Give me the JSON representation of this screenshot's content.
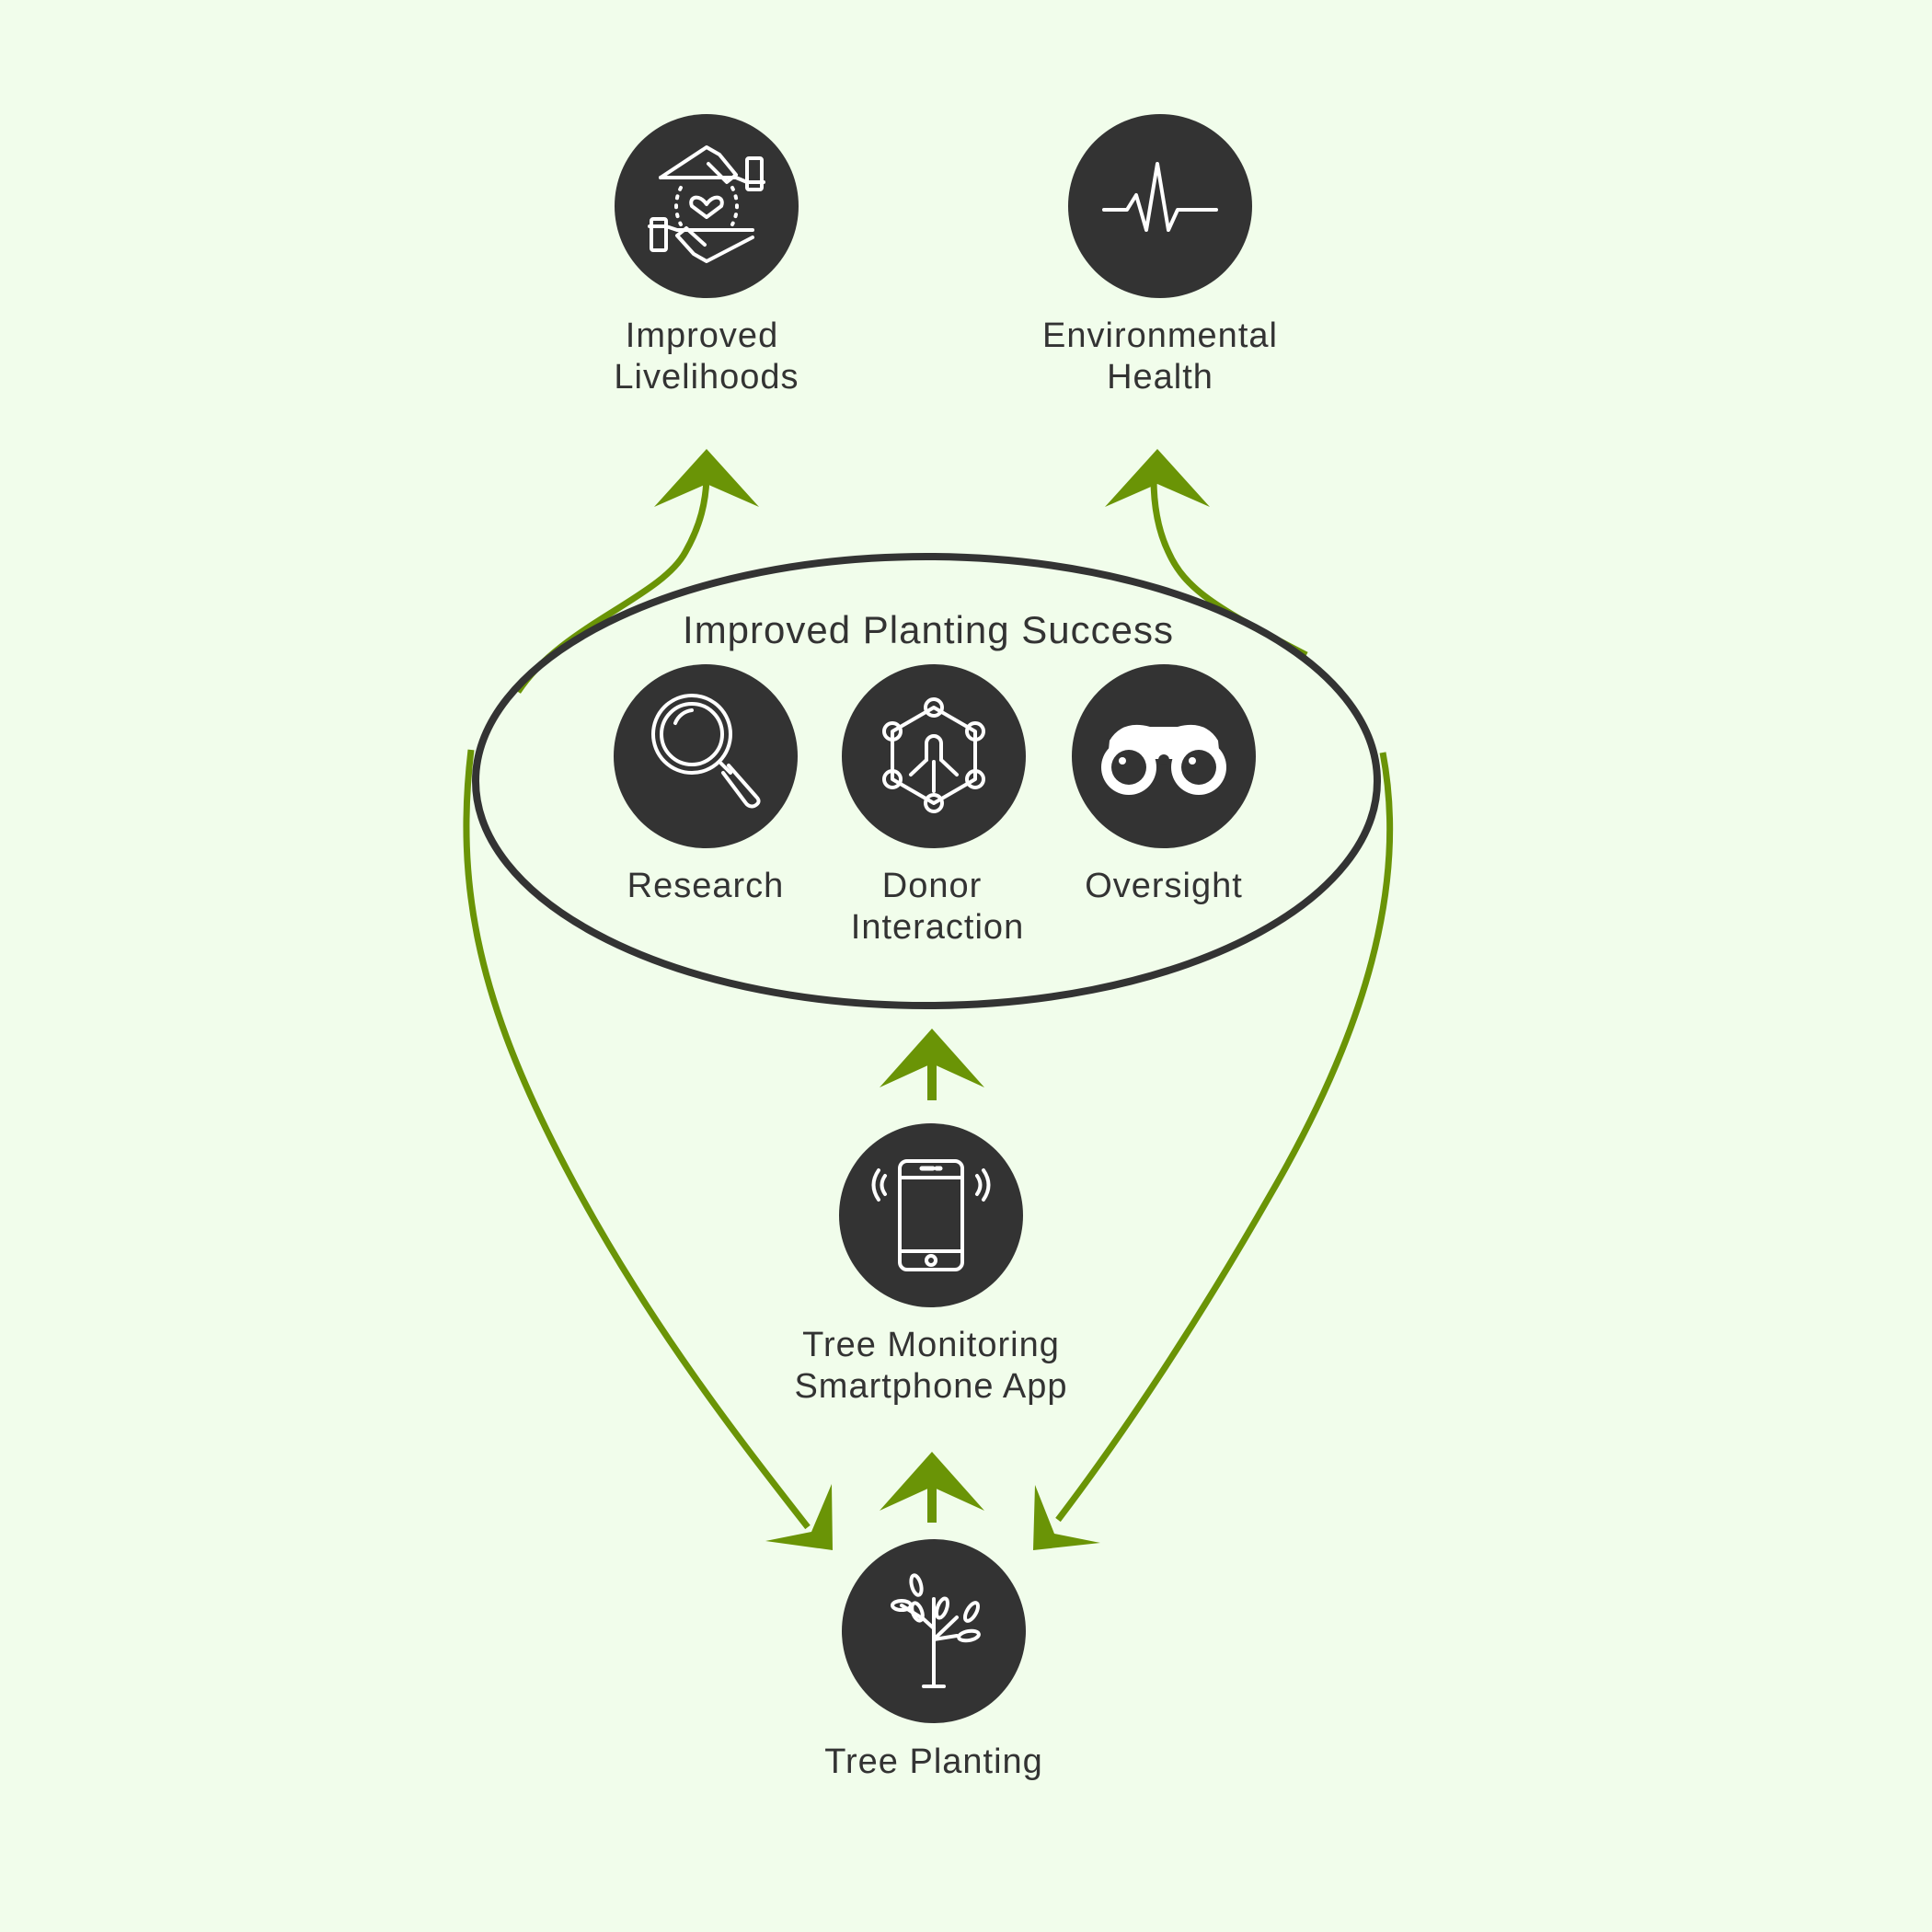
{
  "colors": {
    "background": "#f1fdeb",
    "circle": "#333333",
    "icon": "#ffffff",
    "text": "#333333",
    "arrow": "#6a9406",
    "ellipse_stroke": "#333333"
  },
  "group": {
    "title": "Improved Planting Success"
  },
  "nodes": {
    "livelihoods": {
      "line1": "Improved",
      "line2": "Livelihoods",
      "icon": "hands-heart-icon"
    },
    "environment": {
      "line1": "Environmental",
      "line2": "Health",
      "icon": "heartbeat-icon"
    },
    "research": {
      "line1": "Research",
      "icon": "magnifier-icon"
    },
    "donor": {
      "line1": "Donor",
      "line2": "Interaction",
      "icon": "network-person-icon"
    },
    "oversight": {
      "line1": "Oversight",
      "icon": "binoculars-icon"
    },
    "app": {
      "line1": "Tree Monitoring",
      "line2": "Smartphone App",
      "icon": "smartphone-icon"
    },
    "planting": {
      "line1": "Tree Planting",
      "icon": "sapling-icon"
    }
  }
}
